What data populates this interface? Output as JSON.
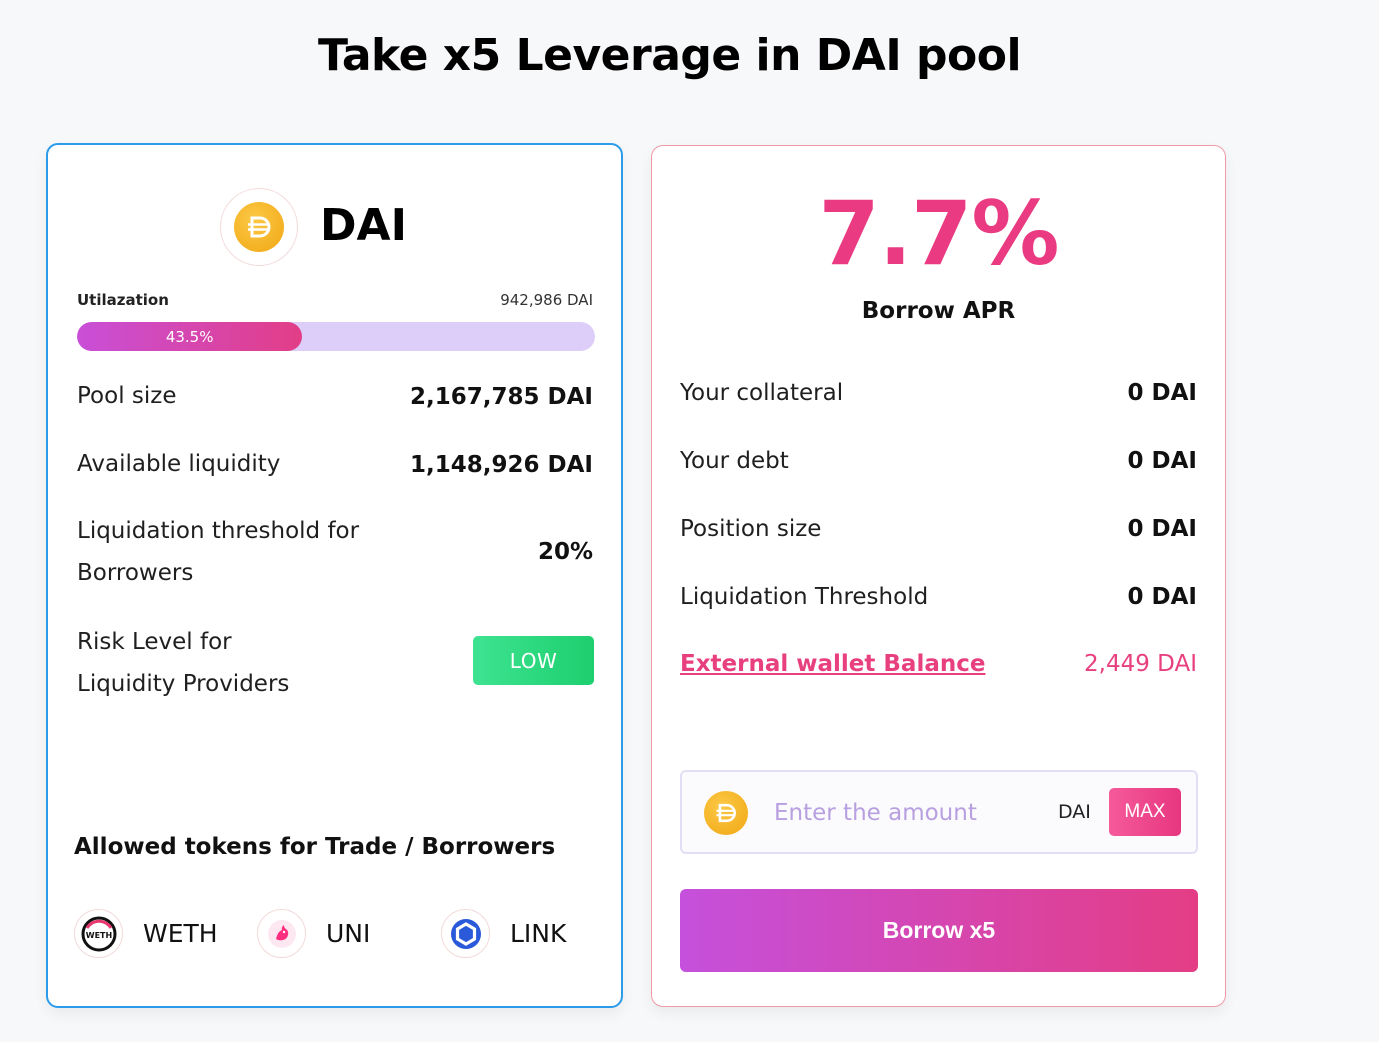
{
  "title": "Take x5 Leverage in DAI pool",
  "pool": {
    "name": "DAI",
    "icon": "dai-coin-icon",
    "utilization": {
      "label": "Utilazation",
      "amount": "942,986 DAI",
      "percent_text": "43.5%",
      "fraction": 0.435
    },
    "rows": [
      {
        "label": "Pool size",
        "value": "2,167,785 DAI"
      },
      {
        "label": "Available  liquidity",
        "value": "1,148,926 DAI"
      },
      {
        "label_line1": "Liquidation threshold for",
        "label_line2": "Borrowers",
        "value": "20%"
      }
    ],
    "risk": {
      "label_line1": "Risk Level for",
      "label_line2": "Liquidity Providers",
      "badge": "LOW",
      "badge_color": "#2fd97f"
    },
    "allowed_tokens_title": "Allowed tokens for Trade / Borrowers",
    "allowed_tokens": [
      {
        "label": "WETH",
        "icon": "weth-icon"
      },
      {
        "label": "UNI",
        "icon": "uni-icon"
      },
      {
        "label": "LINK",
        "icon": "link-icon"
      }
    ]
  },
  "borrow": {
    "apr_value": "7.7%",
    "apr_label": "Borrow APR",
    "accent_color": "#ea3a82",
    "rows": [
      {
        "label": "Your collateral",
        "value": "0 DAI"
      },
      {
        "label": "Your debt",
        "value": "0 DAI"
      },
      {
        "label": "Position size",
        "value": "0 DAI"
      },
      {
        "label": "Liquidation Threshold",
        "value": "0 DAI"
      }
    ],
    "wallet": {
      "label": "External wallet Balance",
      "value": "2,449 DAI"
    },
    "amount_input": {
      "placeholder": "Enter the amount",
      "value": "",
      "unit": "DAI",
      "max_label": "MAX"
    },
    "submit_label": "Borrow x5"
  }
}
